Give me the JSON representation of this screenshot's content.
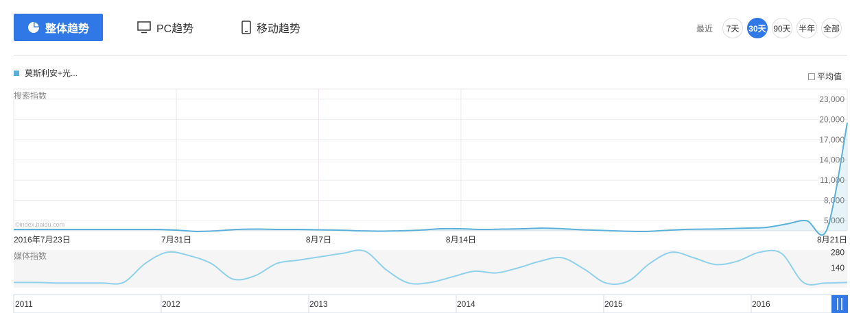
{
  "tabs": {
    "overall_label": "整体趋势",
    "pc_label": "PC趋势",
    "mobile_label": "移动趋势"
  },
  "range": {
    "label": "最近",
    "options": [
      "7天",
      "30天",
      "90天",
      "半年",
      "全部"
    ],
    "active": "30天"
  },
  "legend": {
    "series_name": "莫斯利安+光..."
  },
  "average_toggle": {
    "label": "平均值",
    "checked": false
  },
  "watermark": "©index.baidu.com",
  "colors": {
    "accent": "#2f78e5",
    "series": "#5ab0d9",
    "media_line": "#8fd0ea"
  },
  "chart_data": [
    {
      "type": "area",
      "title": "搜索指数",
      "x_tick_labels": [
        "2016年7月23日",
        "7月31日",
        "8月7日",
        "8月14日",
        "8月21日"
      ],
      "y_tick_labels": [
        "5,000",
        "8,000",
        "11,000",
        "14,000",
        "17,000",
        "20,000",
        "23,000"
      ],
      "ylim": [
        3500,
        24500
      ],
      "grid": true,
      "series": [
        {
          "name": "莫斯利安+光...",
          "values": [
            3700,
            3700,
            3700,
            3700,
            3700,
            3700,
            3700,
            3700,
            3600,
            3400,
            3500,
            3700,
            3750,
            3700,
            3700,
            3650,
            3600,
            3500,
            3450,
            3500,
            3600,
            3800,
            3800,
            3700,
            3750,
            3800,
            3900,
            3800,
            3650,
            3550,
            3450,
            3400,
            3550,
            3700,
            3750,
            3800,
            3900,
            4000,
            4500,
            5000,
            3700,
            19500
          ]
        }
      ]
    },
    {
      "type": "line",
      "title": "媒体指数",
      "y_tick_labels": [
        "140",
        "280"
      ],
      "ylim": [
        0,
        300
      ],
      "grid": false,
      "series": [
        {
          "name": "",
          "values": [
            10,
            10,
            5,
            5,
            5,
            10,
            180,
            280,
            250,
            180,
            40,
            70,
            180,
            210,
            240,
            270,
            290,
            120,
            5,
            10,
            60,
            110,
            95,
            140,
            200,
            230,
            130,
            5,
            20,
            180,
            280,
            230,
            170,
            200,
            280,
            270,
            10,
            5,
            10
          ]
        }
      ]
    },
    {
      "type": "line",
      "title": "",
      "x_tick_labels": [
        "2011",
        "2012",
        "2013",
        "2014",
        "2015",
        "2016"
      ],
      "grid": false,
      "series": []
    }
  ]
}
